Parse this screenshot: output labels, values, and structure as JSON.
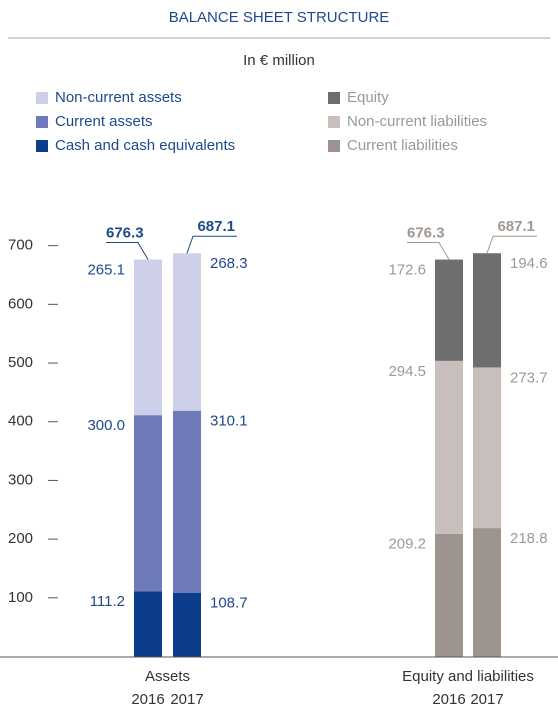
{
  "chart_data": {
    "type": "bar",
    "stacked": true,
    "title": "BALANCE SHEET STRUCTURE",
    "subtitle": "In € million",
    "ylim": [
      0,
      750
    ],
    "yticks": [
      100,
      200,
      300,
      400,
      500,
      600,
      700
    ],
    "groups": [
      {
        "name": "Assets",
        "categories": [
          "2016",
          "2017"
        ],
        "totals": [
          676.3,
          687.1
        ],
        "label_color": "#1e4a8c",
        "series": [
          {
            "name": "Non-current assets",
            "color": "#cdd0e8",
            "values": [
              265.1,
              268.3
            ]
          },
          {
            "name": "Current assets",
            "color": "#6e7bb8",
            "values": [
              300,
              310.1
            ],
            "value_labels": [
              "300.0",
              "310.1"
            ]
          },
          {
            "name": "Cash and cash equivalents",
            "color": "#0d3d8a",
            "values": [
              111.2,
              108.7
            ]
          }
        ]
      },
      {
        "name": "Equity and liabilities",
        "categories": [
          "2016",
          "2017"
        ],
        "totals": [
          676.3,
          687.1
        ],
        "label_color": "#a09893",
        "series": [
          {
            "name": "Equity",
            "color": "#6e6e6e",
            "values": [
              172.6,
              194.6
            ]
          },
          {
            "name": "Non-current liabilities",
            "color": "#c8bfbc",
            "values": [
              294.5,
              273.7
            ]
          },
          {
            "name": "Current liabilities",
            "color": "#9e948f",
            "values": [
              209.2,
              218.8
            ]
          }
        ]
      }
    ]
  }
}
